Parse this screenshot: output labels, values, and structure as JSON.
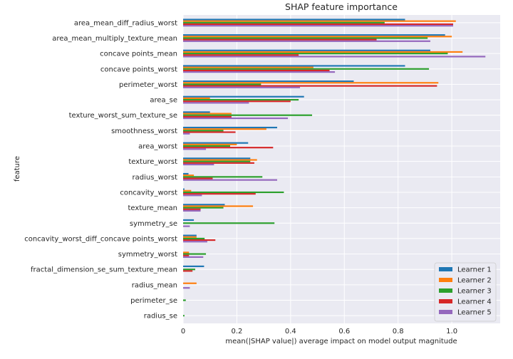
{
  "chart_data": {
    "type": "bar",
    "orientation": "horizontal",
    "title": "SHAP feature importance",
    "xlabel": "mean(|SHAP value|) average impact on model output magnitude",
    "ylabel": "feature",
    "xlim": [
      0,
      1.18
    ],
    "xticks": [
      0,
      0.2,
      0.4,
      0.6,
      0.8,
      1.0
    ],
    "xtick_labels": [
      "0",
      "0.2",
      "0.4",
      "0.6",
      "0.8",
      "1.0"
    ],
    "grid": true,
    "legend_position": "lower-right",
    "categories": [
      "area_mean_diff_radius_worst",
      "area_mean_multiply_texture_mean",
      "concave points_mean",
      "concave points_worst",
      "perimeter_worst",
      "area_se",
      "texture_worst_sum_texture_se",
      "smoothness_worst",
      "area_worst",
      "texture_worst",
      "radius_worst",
      "concavity_worst",
      "texture_mean",
      "symmetry_se",
      "concavity_worst_diff_concave points_worst",
      "symmetry_worst",
      "fractal_dimension_se_sum_texture_mean",
      "radius_mean",
      "perimeter_se",
      "radius_se"
    ],
    "series": [
      {
        "name": "Learner 1",
        "color": "#1f77b4",
        "values": [
          0.826,
          0.975,
          0.92,
          0.826,
          0.635,
          0.45,
          0.1,
          0.35,
          0.242,
          0.25,
          0.02,
          0.005,
          0.155,
          0.04,
          0.05,
          0.0,
          0.078,
          0.0,
          0.0,
          0.0
        ]
      },
      {
        "name": "Learner 2",
        "color": "#ff7f0e",
        "values": [
          1.015,
          1.0,
          1.04,
          0.485,
          0.95,
          0.1,
          0.18,
          0.31,
          0.2,
          0.275,
          0.04,
          0.03,
          0.26,
          0.0,
          0.05,
          0.022,
          0.0,
          0.05,
          0.0,
          0.0
        ]
      },
      {
        "name": "Learner 3",
        "color": "#2ca02c",
        "values": [
          0.75,
          0.91,
          0.985,
          0.915,
          0.29,
          0.43,
          0.48,
          0.15,
          0.175,
          0.25,
          0.295,
          0.375,
          0.15,
          0.34,
          0.08,
          0.085,
          0.045,
          0.0,
          0.01,
          0.005
        ]
      },
      {
        "name": "Learner 4",
        "color": "#d62728",
        "values": [
          1.005,
          0.72,
          0.43,
          0.545,
          0.945,
          0.4,
          0.18,
          0.195,
          0.335,
          0.265,
          0.11,
          0.27,
          0.065,
          0.0,
          0.12,
          0.022,
          0.035,
          0.0,
          0.0,
          0.0
        ]
      },
      {
        "name": "Learner 5",
        "color": "#9467bd",
        "values": [
          1.005,
          0.92,
          1.125,
          0.565,
          0.435,
          0.245,
          0.39,
          0.025,
          0.085,
          0.115,
          0.35,
          0.07,
          0.065,
          0.025,
          0.09,
          0.075,
          0.0,
          0.025,
          0.0,
          0.0
        ]
      }
    ]
  }
}
